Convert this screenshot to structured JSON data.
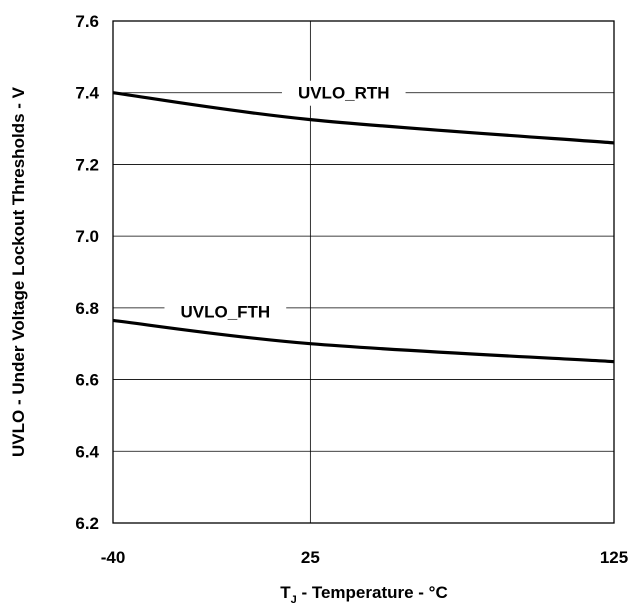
{
  "chart_data": {
    "type": "line",
    "title": "",
    "xlabel": {
      "prefix": "T",
      "subscript": "J",
      "suffix": " - Temperature - °C"
    },
    "ylabel": "UVLO - Under Voltage Lockout Thresholds - V",
    "x_ticks": [
      {
        "value": -40,
        "label": "-40"
      },
      {
        "value": 25,
        "label": "25"
      },
      {
        "value": 125,
        "label": "125"
      }
    ],
    "y_ticks": [
      {
        "value": 6.2,
        "label": "6.2"
      },
      {
        "value": 6.4,
        "label": "6.4"
      },
      {
        "value": 6.6,
        "label": "6.6"
      },
      {
        "value": 6.8,
        "label": "6.8"
      },
      {
        "value": 7.0,
        "label": "7.0"
      },
      {
        "value": 7.2,
        "label": "7.2"
      },
      {
        "value": 7.4,
        "label": "7.4"
      },
      {
        "value": 7.6,
        "label": "7.6"
      }
    ],
    "xlim": [
      -40,
      125
    ],
    "ylim": [
      6.2,
      7.6
    ],
    "grid": true,
    "series": [
      {
        "name": "UVLO_RTH",
        "x": [
          -40,
          25,
          125
        ],
        "y": [
          7.4,
          7.325,
          7.26
        ],
        "label_at": {
          "x": 36,
          "y": 7.4
        }
      },
      {
        "name": "UVLO_FTH",
        "x": [
          -40,
          25,
          125
        ],
        "y": [
          6.765,
          6.7,
          6.65
        ],
        "label_at": {
          "x": -3,
          "y": 6.79
        }
      }
    ]
  }
}
